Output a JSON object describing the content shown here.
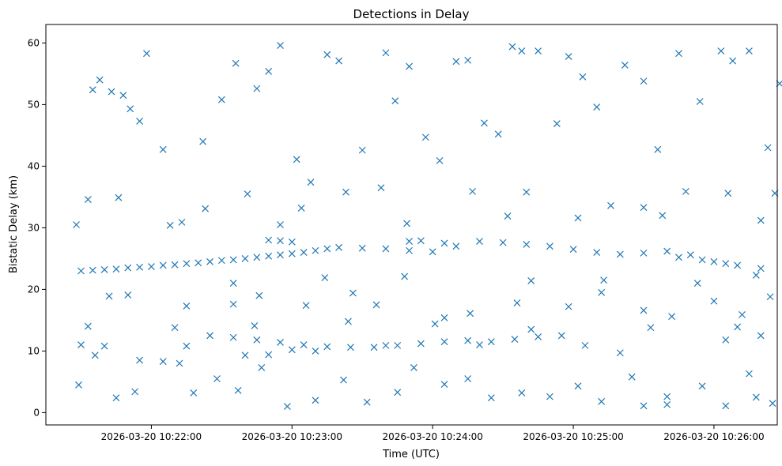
{
  "chart_data": {
    "type": "scatter",
    "title": "Detections in Delay",
    "xlabel": "Time (UTC)",
    "ylabel": "Bistatic Delay (km)",
    "x_unit": "time",
    "xlim": [
      "2026-03-20 10:21:15",
      "2026-03-20 10:26:27"
    ],
    "ylim": [
      -2,
      63
    ],
    "x_ticks": [
      "2026-03-20 10:22:00",
      "2026-03-20 10:23:00",
      "2026-03-20 10:24:00",
      "2026-03-20 10:25:00",
      "2026-03-20 10:26:00"
    ],
    "y_ticks": [
      0,
      10,
      20,
      30,
      40,
      50,
      60
    ],
    "grid": false,
    "marker": "x",
    "color": "#1f77b4",
    "series": [
      {
        "points": [
          [
            "2026-03-20 10:21:30",
            23.0
          ],
          [
            "2026-03-20 10:21:35",
            23.1
          ],
          [
            "2026-03-20 10:21:40",
            23.2
          ],
          [
            "2026-03-20 10:21:45",
            23.3
          ],
          [
            "2026-03-20 10:21:50",
            23.5
          ],
          [
            "2026-03-20 10:21:55",
            23.6
          ],
          [
            "2026-03-20 10:22:00",
            23.7
          ],
          [
            "2026-03-20 10:22:05",
            23.9
          ],
          [
            "2026-03-20 10:22:10",
            24.0
          ],
          [
            "2026-03-20 10:22:15",
            24.2
          ],
          [
            "2026-03-20 10:22:20",
            24.3
          ],
          [
            "2026-03-20 10:22:25",
            24.5
          ],
          [
            "2026-03-20 10:22:30",
            24.7
          ],
          [
            "2026-03-20 10:22:35",
            24.8
          ],
          [
            "2026-03-20 10:22:40",
            25.0
          ],
          [
            "2026-03-20 10:22:45",
            25.2
          ],
          [
            "2026-03-20 10:22:50",
            25.4
          ],
          [
            "2026-03-20 10:22:55",
            25.6
          ],
          [
            "2026-03-20 10:23:00",
            25.8
          ],
          [
            "2026-03-20 10:23:05",
            26.0
          ],
          [
            "2026-03-20 10:23:10",
            26.3
          ],
          [
            "2026-03-20 10:23:15",
            26.6
          ],
          [
            "2026-03-20 10:23:20",
            26.8
          ],
          [
            "2026-03-20 10:23:30",
            26.7
          ],
          [
            "2026-03-20 10:23:40",
            26.6
          ],
          [
            "2026-03-20 10:23:50",
            26.3
          ],
          [
            "2026-03-20 10:24:00",
            26.1
          ],
          [
            "2026-03-20 10:24:10",
            27.0
          ],
          [
            "2026-03-20 10:24:20",
            27.8
          ],
          [
            "2026-03-20 10:24:30",
            27.6
          ],
          [
            "2026-03-20 10:24:40",
            27.3
          ],
          [
            "2026-03-20 10:24:50",
            27.0
          ],
          [
            "2026-03-20 10:25:00",
            26.5
          ],
          [
            "2026-03-20 10:25:10",
            26.0
          ],
          [
            "2026-03-20 10:25:20",
            25.7
          ],
          [
            "2026-03-20 10:25:30",
            25.9
          ],
          [
            "2026-03-20 10:25:40",
            26.2
          ],
          [
            "2026-03-20 10:25:50",
            25.6
          ],
          [
            "2026-03-20 10:26:00",
            24.5
          ],
          [
            "2026-03-20 10:26:10",
            23.9
          ],
          [
            "2026-03-20 10:26:20",
            23.4
          ],
          [
            "2026-03-20 10:22:50",
            28.0
          ],
          [
            "2026-03-20 10:22:55",
            27.9
          ],
          [
            "2026-03-20 10:23:00",
            27.7
          ],
          [
            "2026-03-20 10:23:50",
            27.8
          ],
          [
            "2026-03-20 10:23:55",
            27.9
          ],
          [
            "2026-03-20 10:24:05",
            27.5
          ],
          [
            "2026-03-20 10:25:45",
            25.2
          ],
          [
            "2026-03-20 10:25:55",
            24.8
          ],
          [
            "2026-03-20 10:26:05",
            24.2
          ],
          [
            "2026-03-20 10:21:30",
            11.0
          ],
          [
            "2026-03-20 10:21:40",
            10.8
          ],
          [
            "2026-03-20 10:21:55",
            8.5
          ],
          [
            "2026-03-20 10:22:05",
            8.3
          ],
          [
            "2026-03-20 10:22:15",
            10.8
          ],
          [
            "2026-03-20 10:22:25",
            12.5
          ],
          [
            "2026-03-20 10:22:35",
            12.2
          ],
          [
            "2026-03-20 10:22:45",
            11.8
          ],
          [
            "2026-03-20 10:22:55",
            11.4
          ],
          [
            "2026-03-20 10:23:05",
            11.0
          ],
          [
            "2026-03-20 10:23:15",
            10.7
          ],
          [
            "2026-03-20 10:23:25",
            10.6
          ],
          [
            "2026-03-20 10:23:35",
            10.6
          ],
          [
            "2026-03-20 10:23:45",
            10.9
          ],
          [
            "2026-03-20 10:23:55",
            11.2
          ],
          [
            "2026-03-20 10:24:05",
            11.5
          ],
          [
            "2026-03-20 10:24:15",
            11.7
          ],
          [
            "2026-03-20 10:24:25",
            11.5
          ],
          [
            "2026-03-20 10:24:35",
            11.9
          ],
          [
            "2026-03-20 10:24:45",
            12.3
          ],
          [
            "2026-03-20 10:24:55",
            12.5
          ],
          [
            "2026-03-20 10:25:05",
            10.9
          ],
          [
            "2026-03-20 10:25:20",
            9.7
          ],
          [
            "2026-03-20 10:25:30",
            1.1
          ],
          [
            "2026-03-20 10:25:40",
            1.3
          ],
          [
            "2026-03-20 10:22:40",
            9.3
          ],
          [
            "2026-03-20 10:22:50",
            9.4
          ],
          [
            "2026-03-20 10:23:00",
            10.2
          ],
          [
            "2026-03-20 10:23:10",
            10.0
          ],
          [
            "2026-03-20 10:23:40",
            10.9
          ],
          [
            "2026-03-20 10:24:20",
            11.0
          ],
          [
            "2026-03-20 10:26:05",
            11.8
          ],
          [
            "2026-03-20 10:26:15",
            6.3
          ],
          [
            "2026-03-20 10:26:20",
            12.5
          ],
          [
            "2026-03-20 10:21:28",
            30.5
          ],
          [
            "2026-03-20 10:21:33",
            34.6
          ],
          [
            "2026-03-20 10:21:35",
            52.4
          ],
          [
            "2026-03-20 10:21:38",
            54.0
          ],
          [
            "2026-03-20 10:21:43",
            52.1
          ],
          [
            "2026-03-20 10:21:48",
            51.5
          ],
          [
            "2026-03-20 10:21:51",
            49.3
          ],
          [
            "2026-03-20 10:21:55",
            47.3
          ],
          [
            "2026-03-20 10:21:58",
            58.3
          ],
          [
            "2026-03-20 10:22:05",
            42.7
          ],
          [
            "2026-03-20 10:22:13",
            30.9
          ],
          [
            "2026-03-20 10:22:22",
            44.0
          ],
          [
            "2026-03-20 10:22:30",
            50.8
          ],
          [
            "2026-03-20 10:22:36",
            56.7
          ],
          [
            "2026-03-20 10:22:45",
            52.6
          ],
          [
            "2026-03-20 10:22:50",
            55.4
          ],
          [
            "2026-03-20 10:22:55",
            59.6
          ],
          [
            "2026-03-20 10:23:02",
            41.1
          ],
          [
            "2026-03-20 10:23:08",
            37.4
          ],
          [
            "2026-03-20 10:23:15",
            58.1
          ],
          [
            "2026-03-20 10:23:20",
            57.1
          ],
          [
            "2026-03-20 10:23:30",
            42.6
          ],
          [
            "2026-03-20 10:23:40",
            58.4
          ],
          [
            "2026-03-20 10:23:44",
            50.6
          ],
          [
            "2026-03-20 10:23:50",
            56.2
          ],
          [
            "2026-03-20 10:23:57",
            44.7
          ],
          [
            "2026-03-20 10:24:03",
            40.9
          ],
          [
            "2026-03-20 10:24:10",
            57.0
          ],
          [
            "2026-03-20 10:24:15",
            57.2
          ],
          [
            "2026-03-20 10:24:22",
            47.0
          ],
          [
            "2026-03-20 10:24:28",
            45.2
          ],
          [
            "2026-03-20 10:24:34",
            59.4
          ],
          [
            "2026-03-20 10:24:38",
            58.7
          ],
          [
            "2026-03-20 10:24:45",
            58.7
          ],
          [
            "2026-03-20 10:24:53",
            46.9
          ],
          [
            "2026-03-20 10:24:58",
            57.8
          ],
          [
            "2026-03-20 10:25:04",
            54.5
          ],
          [
            "2026-03-20 10:25:10",
            49.6
          ],
          [
            "2026-03-20 10:25:22",
            56.4
          ],
          [
            "2026-03-20 10:25:30",
            53.8
          ],
          [
            "2026-03-20 10:25:36",
            42.7
          ],
          [
            "2026-03-20 10:25:45",
            58.3
          ],
          [
            "2026-03-20 10:25:54",
            50.5
          ],
          [
            "2026-03-20 10:26:03",
            58.7
          ],
          [
            "2026-03-20 10:26:08",
            57.1
          ],
          [
            "2026-03-20 10:26:15",
            58.7
          ],
          [
            "2026-03-20 10:26:23",
            43.0
          ],
          [
            "2026-03-20 10:26:28",
            53.4
          ],
          [
            "2026-03-20 10:21:29",
            4.5
          ],
          [
            "2026-03-20 10:21:36",
            9.3
          ],
          [
            "2026-03-20 10:21:45",
            2.4
          ],
          [
            "2026-03-20 10:21:53",
            3.4
          ],
          [
            "2026-03-20 10:22:12",
            8.0
          ],
          [
            "2026-03-20 10:22:18",
            3.2
          ],
          [
            "2026-03-20 10:22:28",
            5.5
          ],
          [
            "2026-03-20 10:22:37",
            3.6
          ],
          [
            "2026-03-20 10:22:47",
            7.3
          ],
          [
            "2026-03-20 10:22:58",
            1.0
          ],
          [
            "2026-03-20 10:23:10",
            2.0
          ],
          [
            "2026-03-20 10:23:22",
            5.3
          ],
          [
            "2026-03-20 10:23:32",
            1.7
          ],
          [
            "2026-03-20 10:23:45",
            3.3
          ],
          [
            "2026-03-20 10:23:52",
            7.3
          ],
          [
            "2026-03-20 10:24:05",
            4.6
          ],
          [
            "2026-03-20 10:24:15",
            5.5
          ],
          [
            "2026-03-20 10:24:25",
            2.4
          ],
          [
            "2026-03-20 10:24:38",
            3.2
          ],
          [
            "2026-03-20 10:24:50",
            2.6
          ],
          [
            "2026-03-20 10:25:02",
            4.3
          ],
          [
            "2026-03-20 10:25:12",
            1.8
          ],
          [
            "2026-03-20 10:25:25",
            5.8
          ],
          [
            "2026-03-20 10:25:40",
            2.6
          ],
          [
            "2026-03-20 10:25:55",
            4.3
          ],
          [
            "2026-03-20 10:26:05",
            1.1
          ],
          [
            "2026-03-20 10:26:18",
            2.5
          ],
          [
            "2026-03-20 10:26:25",
            1.5
          ],
          [
            "2026-03-20 10:21:42",
            18.9
          ],
          [
            "2026-03-20 10:21:50",
            19.1
          ],
          [
            "2026-03-20 10:22:15",
            17.3
          ],
          [
            "2026-03-20 10:22:35",
            17.6
          ],
          [
            "2026-03-20 10:22:46",
            19.0
          ],
          [
            "2026-03-20 10:23:06",
            17.4
          ],
          [
            "2026-03-20 10:23:26",
            19.4
          ],
          [
            "2026-03-20 10:23:36",
            17.5
          ],
          [
            "2026-03-20 10:24:05",
            15.4
          ],
          [
            "2026-03-20 10:24:16",
            16.1
          ],
          [
            "2026-03-20 10:24:36",
            17.8
          ],
          [
            "2026-03-20 10:24:58",
            17.2
          ],
          [
            "2026-03-20 10:25:12",
            19.5
          ],
          [
            "2026-03-20 10:25:30",
            16.6
          ],
          [
            "2026-03-20 10:25:42",
            15.6
          ],
          [
            "2026-03-20 10:26:00",
            18.1
          ],
          [
            "2026-03-20 10:26:12",
            15.9
          ],
          [
            "2026-03-20 10:26:24",
            18.8
          ],
          [
            "2026-03-20 10:21:46",
            34.9
          ],
          [
            "2026-03-20 10:22:23",
            33.1
          ],
          [
            "2026-03-20 10:22:41",
            35.5
          ],
          [
            "2026-03-20 10:23:04",
            33.2
          ],
          [
            "2026-03-20 10:23:23",
            35.8
          ],
          [
            "2026-03-20 10:23:38",
            36.5
          ],
          [
            "2026-03-20 10:24:17",
            35.9
          ],
          [
            "2026-03-20 10:24:40",
            35.8
          ],
          [
            "2026-03-20 10:25:16",
            33.6
          ],
          [
            "2026-03-20 10:25:30",
            33.3
          ],
          [
            "2026-03-20 10:25:48",
            35.9
          ],
          [
            "2026-03-20 10:26:06",
            35.6
          ],
          [
            "2026-03-20 10:26:26",
            35.6
          ],
          [
            "2026-03-20 10:22:08",
            30.4
          ],
          [
            "2026-03-20 10:22:55",
            30.5
          ],
          [
            "2026-03-20 10:23:49",
            30.7
          ],
          [
            "2026-03-20 10:24:32",
            31.9
          ],
          [
            "2026-03-20 10:25:02",
            31.6
          ],
          [
            "2026-03-20 10:25:38",
            32.0
          ],
          [
            "2026-03-20 10:26:20",
            31.2
          ],
          [
            "2026-03-20 10:22:35",
            21.0
          ],
          [
            "2026-03-20 10:23:14",
            21.9
          ],
          [
            "2026-03-20 10:23:48",
            22.1
          ],
          [
            "2026-03-20 10:24:42",
            21.4
          ],
          [
            "2026-03-20 10:25:13",
            21.5
          ],
          [
            "2026-03-20 10:25:53",
            21.0
          ],
          [
            "2026-03-20 10:26:18",
            22.3
          ],
          [
            "2026-03-20 10:21:33",
            14.0
          ],
          [
            "2026-03-20 10:22:10",
            13.8
          ],
          [
            "2026-03-20 10:22:44",
            14.1
          ],
          [
            "2026-03-20 10:23:24",
            14.8
          ],
          [
            "2026-03-20 10:24:01",
            14.4
          ],
          [
            "2026-03-20 10:24:42",
            13.5
          ],
          [
            "2026-03-20 10:25:33",
            13.8
          ],
          [
            "2026-03-20 10:26:10",
            13.9
          ]
        ]
      }
    ]
  }
}
